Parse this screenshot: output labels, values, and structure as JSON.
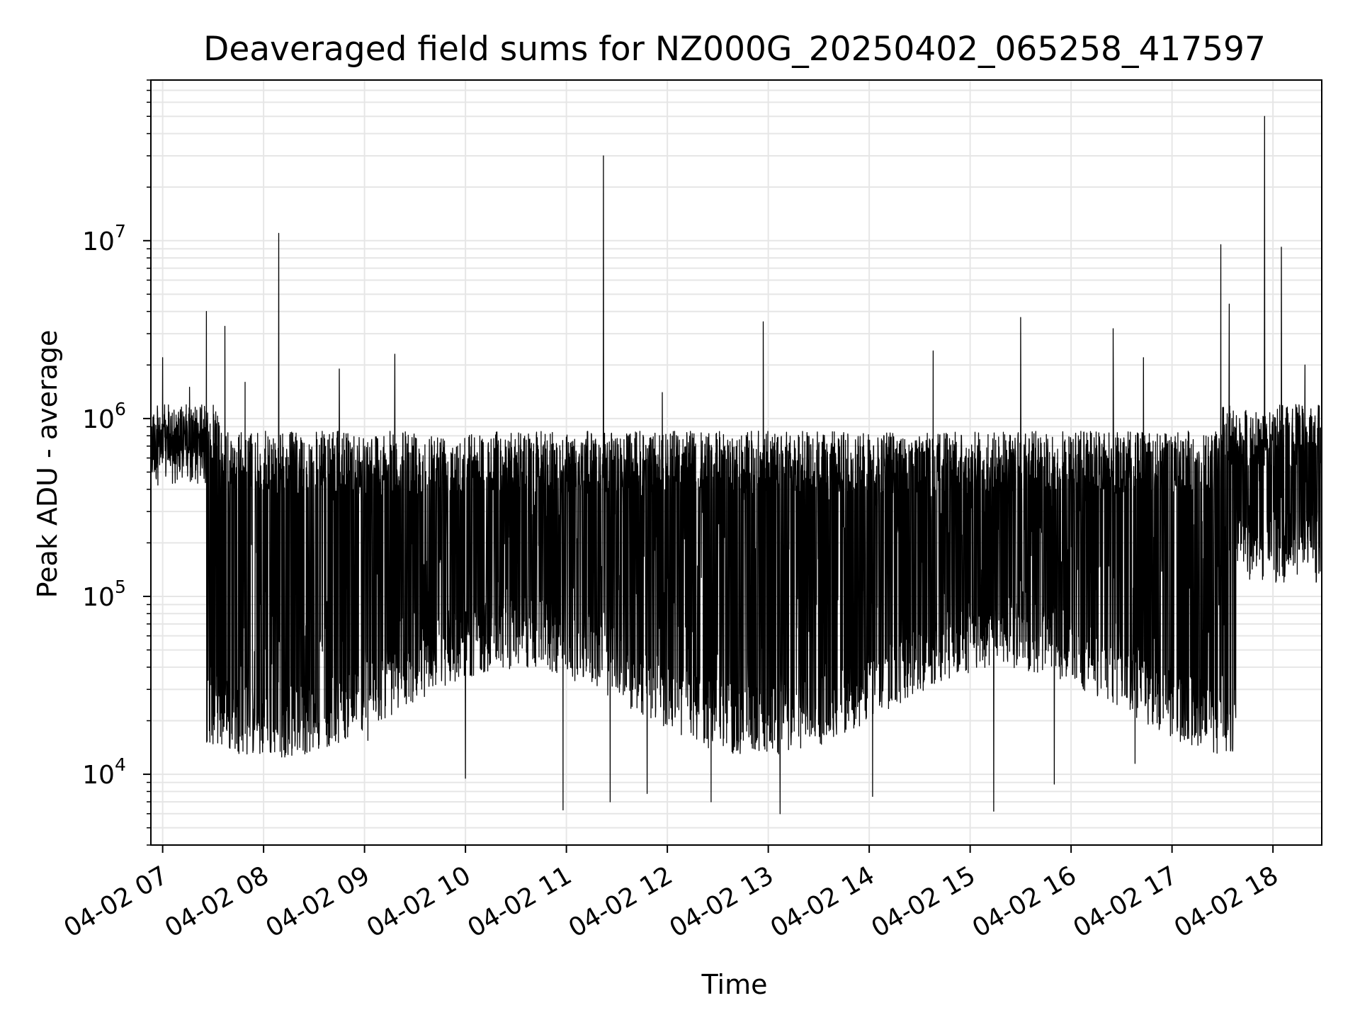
{
  "chart_data": {
    "type": "line",
    "title": "Deaveraged field sums for NZ000G_20250402_065258_417597",
    "xlabel": "Time",
    "ylabel": "Peak ADU - average",
    "yscale": "log",
    "grid": true,
    "series_color": "#000000",
    "grid_color": "#e6e6e6",
    "x_range": [
      "2025-04-02 06:53",
      "2025-04-02 18:29"
    ],
    "ylim": [
      4000,
      80000000
    ],
    "x_ticks": [
      "04-02 07",
      "04-02 08",
      "04-02 09",
      "04-02 10",
      "04-02 11",
      "04-02 12",
      "04-02 13",
      "04-02 14",
      "04-02 15",
      "04-02 16",
      "04-02 17",
      "04-02 18"
    ],
    "x_tick_times": [
      "2025-04-02 07:00",
      "2025-04-02 08:00",
      "2025-04-02 09:00",
      "2025-04-02 10:00",
      "2025-04-02 11:00",
      "2025-04-02 12:00",
      "2025-04-02 13:00",
      "2025-04-02 14:00",
      "2025-04-02 15:00",
      "2025-04-02 16:00",
      "2025-04-02 17:00",
      "2025-04-02 18:00"
    ],
    "y_ticks": [
      {
        "value": 10000,
        "base": "10",
        "exp": "4"
      },
      {
        "value": 100000,
        "base": "10",
        "exp": "5"
      },
      {
        "value": 1000000,
        "base": "10",
        "exp": "6"
      },
      {
        "value": 10000000,
        "base": "10",
        "exp": "7"
      }
    ],
    "series": [
      {
        "values": [
          {
            "t": "2025-04-02 06:53",
            "y": 600000
          },
          {
            "t": "2025-04-02 07:00",
            "y": 2200000
          },
          {
            "t": "2025-04-02 07:16",
            "y": 1500000
          },
          {
            "t": "2025-04-02 07:26",
            "y": 4000000
          },
          {
            "t": "2025-04-02 07:37",
            "y": 3300000
          },
          {
            "t": "2025-04-02 07:49",
            "y": 1600000
          },
          {
            "t": "2025-04-02 08:09",
            "y": 11000000
          },
          {
            "t": "2025-04-02 08:45",
            "y": 1900000
          },
          {
            "t": "2025-04-02 09:18",
            "y": 2300000
          },
          {
            "t": "2025-04-02 11:22",
            "y": 30000000
          },
          {
            "t": "2025-04-02 11:57",
            "y": 1400000
          },
          {
            "t": "2025-04-02 12:57",
            "y": 3500000
          },
          {
            "t": "2025-04-02 14:38",
            "y": 2400000
          },
          {
            "t": "2025-04-02 15:30",
            "y": 3700000
          },
          {
            "t": "2025-04-02 16:25",
            "y": 3200000
          },
          {
            "t": "2025-04-02 16:43",
            "y": 2200000
          },
          {
            "t": "2025-04-02 17:29",
            "y": 9500000
          },
          {
            "t": "2025-04-02 17:34",
            "y": 4400000
          },
          {
            "t": "2025-04-02 17:55",
            "y": 50000000
          },
          {
            "t": "2025-04-02 18:05",
            "y": 9200000
          },
          {
            "t": "2025-04-02 18:19",
            "y": 2000000
          },
          {
            "t": "2025-04-02 18:29",
            "y": 200000
          }
        ],
        "minima": [
          {
            "t": "2025-04-02 08:17",
            "y": 14000
          },
          {
            "t": "2025-04-02 09:02",
            "y": 15500
          },
          {
            "t": "2025-04-02 10:00",
            "y": 9500
          },
          {
            "t": "2025-04-02 10:58",
            "y": 6300
          },
          {
            "t": "2025-04-02 11:26",
            "y": 7000
          },
          {
            "t": "2025-04-02 11:48",
            "y": 7800
          },
          {
            "t": "2025-04-02 12:26",
            "y": 7000
          },
          {
            "t": "2025-04-02 13:07",
            "y": 6000
          },
          {
            "t": "2025-04-02 14:02",
            "y": 7500
          },
          {
            "t": "2025-04-02 15:14",
            "y": 6200
          },
          {
            "t": "2025-04-02 15:50",
            "y": 8800
          },
          {
            "t": "2025-04-02 16:38",
            "y": 11500
          },
          {
            "t": "2025-04-02 17:18",
            "y": 18000
          }
        ]
      }
    ]
  }
}
